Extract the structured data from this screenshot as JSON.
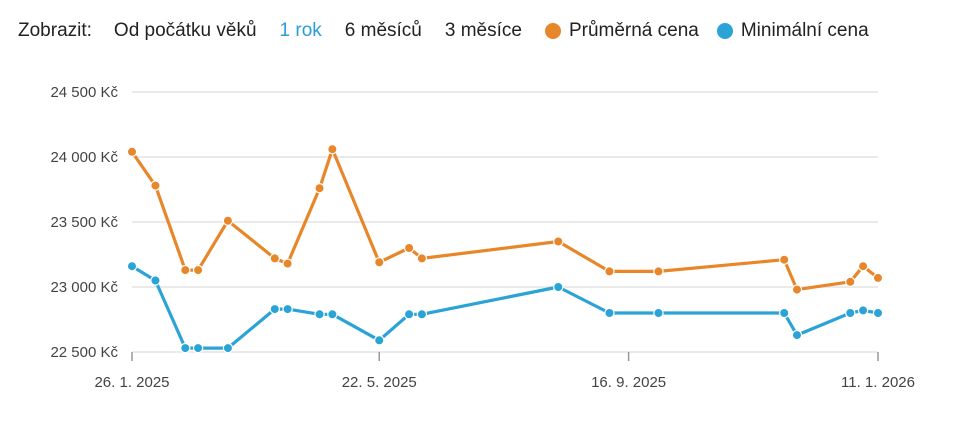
{
  "toolbar": {
    "label": "Zobrazit:",
    "options": [
      "Od počátku věků",
      "1 rok",
      "6 měsíců",
      "3 měsíce"
    ],
    "active_index": 1
  },
  "colors": {
    "avg": "#e8862a",
    "min": "#2aa3d6",
    "grid": "#e4e4e4",
    "axis": "#999999"
  },
  "chart_data": {
    "type": "line",
    "title": "",
    "xlabel": "",
    "ylabel": "",
    "y_ticks": [
      "22 500 Kč",
      "23 000 Kč",
      "23 500 Kč",
      "24 000 Kč",
      "24 500 Kč"
    ],
    "y_tick_values": [
      22500,
      23000,
      23500,
      24000,
      24500
    ],
    "ylim": [
      22500,
      24500
    ],
    "x_ticks": [
      "26. 1. 2025",
      "22. 5. 2025",
      "16. 9. 2025",
      "11. 1. 2026"
    ],
    "x_tick_values": [
      "2025-01-26",
      "2025-05-22",
      "2025-09-16",
      "2026-01-11"
    ],
    "xlim": [
      "2025-01-26",
      "2026-01-11"
    ],
    "grid": true,
    "legend_position": "top",
    "series": [
      {
        "name": "Průměrná cena",
        "color": "#e8862a",
        "x": [
          "2025-01-26",
          "2025-02-06",
          "2025-02-20",
          "2025-02-26",
          "2025-03-12",
          "2025-04-03",
          "2025-04-09",
          "2025-04-24",
          "2025-04-30",
          "2025-05-22",
          "2025-06-05",
          "2025-06-11",
          "2025-08-14",
          "2025-09-07",
          "2025-09-30",
          "2025-11-28",
          "2025-12-04",
          "2025-12-29",
          "2026-01-04",
          "2026-01-11"
        ],
        "y": [
          24040,
          23780,
          23130,
          23130,
          23510,
          23220,
          23180,
          23760,
          24060,
          23190,
          23300,
          23220,
          23350,
          23120,
          23120,
          23210,
          22980,
          23040,
          23160,
          23070
        ]
      },
      {
        "name": "Minimální cena",
        "color": "#2aa3d6",
        "x": [
          "2025-01-26",
          "2025-02-06",
          "2025-02-20",
          "2025-02-26",
          "2025-03-12",
          "2025-04-03",
          "2025-04-09",
          "2025-04-24",
          "2025-04-30",
          "2025-05-22",
          "2025-06-05",
          "2025-06-11",
          "2025-08-14",
          "2025-09-07",
          "2025-09-30",
          "2025-11-28",
          "2025-12-04",
          "2025-12-29",
          "2026-01-04",
          "2026-01-11"
        ],
        "y": [
          23160,
          23050,
          22530,
          22530,
          22530,
          22830,
          22830,
          22790,
          22790,
          22590,
          22790,
          22790,
          23000,
          22800,
          22800,
          22800,
          22630,
          22800,
          22820,
          22800
        ]
      }
    ]
  }
}
